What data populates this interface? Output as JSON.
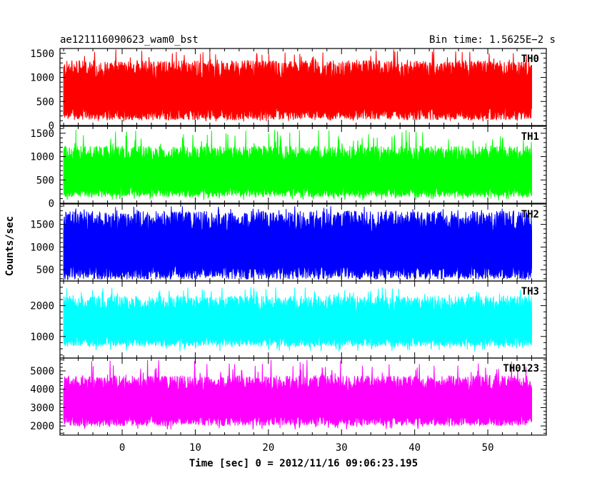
{
  "header": {
    "title": "ae121116090623_wam0_bst",
    "bin_time": "Bin time: 1.5625E−2 s"
  },
  "chart_data": {
    "type": "line",
    "xlabel": "Time [sec] 0 = 2012/11/16 09:06:23.195",
    "ylabel": "Counts/sec",
    "xlim": [
      -8.5,
      58
    ],
    "x_ticks": [
      0,
      10,
      20,
      30,
      40,
      50
    ],
    "x_range": [
      -8,
      56
    ],
    "panels": [
      {
        "name": "TH0",
        "color": "#ff0000",
        "ylim": [
          0,
          1600
        ],
        "y_ticks": [
          0,
          500,
          1000,
          1500
        ],
        "typical_range": [
          250,
          1150
        ],
        "extreme_range": [
          80,
          1600
        ]
      },
      {
        "name": "TH1",
        "color": "#00ff00",
        "ylim": [
          0,
          1650
        ],
        "y_ticks": [
          0,
          500,
          1000,
          1500
        ],
        "typical_range": [
          250,
          1050
        ],
        "extreme_range": [
          60,
          1570
        ]
      },
      {
        "name": "TH2",
        "color": "#0000ff",
        "ylim": [
          250,
          1950
        ],
        "y_ticks": [
          500,
          1000,
          1500
        ],
        "typical_range": [
          450,
          1550
        ],
        "extreme_range": [
          310,
          1900
        ]
      },
      {
        "name": "TH3",
        "color": "#00ffff",
        "ylim": [
          300,
          2800
        ],
        "y_ticks": [
          1000,
          2000
        ],
        "typical_range": [
          850,
          2050
        ],
        "extreme_range": [
          500,
          2600
        ]
      },
      {
        "name": "TH0123",
        "color": "#ff00ff",
        "ylim": [
          1500,
          5700
        ],
        "y_ticks": [
          2000,
          3000,
          4000,
          5000
        ],
        "typical_range": [
          2300,
          4300
        ],
        "extreme_range": [
          1800,
          5600
        ]
      }
    ]
  }
}
